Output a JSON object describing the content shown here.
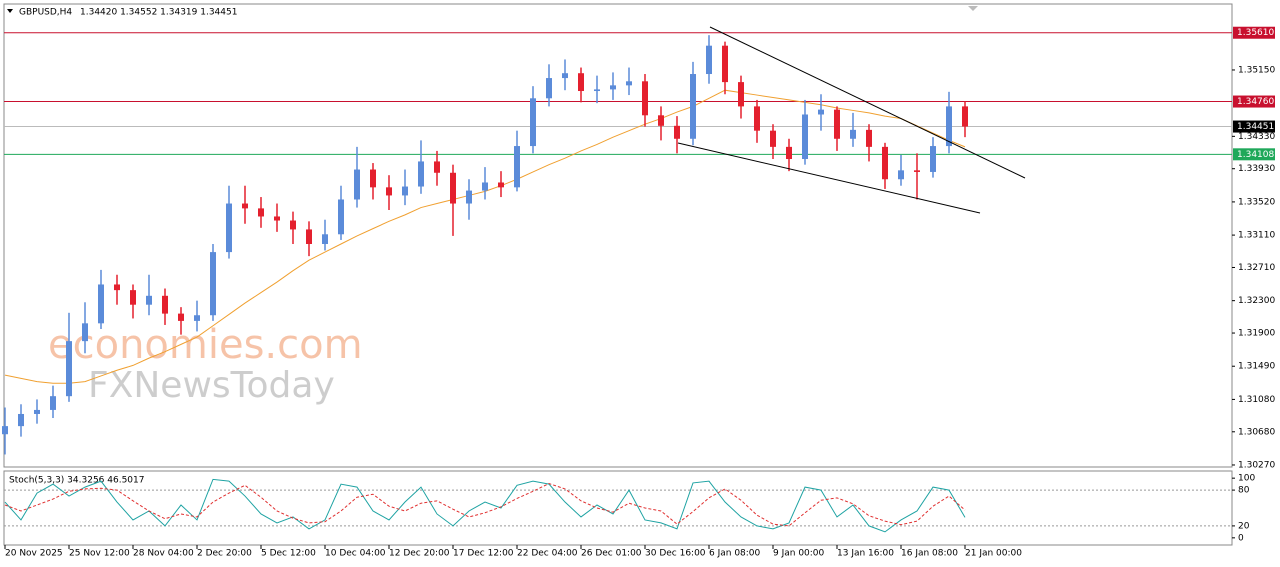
{
  "chart_data": [
    {
      "type": "candlestick",
      "title": "GBPUSD,H4",
      "subtitle": "1.34420 1.34552 1.34319 1.34451",
      "watermark": [
        "economies.com",
        "FXNewsToday"
      ],
      "up_color": "#5b8bd9",
      "down_color": "#e4202e",
      "open": [
        1.3065,
        1.3075,
        1.309,
        1.3095,
        1.3112,
        1.318,
        1.3202,
        1.325,
        1.3243,
        1.3225,
        1.3236,
        1.3214,
        1.3205,
        1.3212,
        1.329,
        1.335,
        1.3344,
        1.3334,
        1.3329,
        1.3318,
        1.33,
        1.3312,
        1.3355,
        1.3392,
        1.337,
        1.336,
        1.3371,
        1.3402,
        1.3388,
        1.335,
        1.3366,
        1.3376,
        1.337,
        1.3421,
        1.348,
        1.3505,
        1.3511,
        1.3489,
        1.3491,
        1.3496,
        1.3501,
        1.3459,
        1.3446,
        1.343,
        1.351,
        1.3545,
        1.35,
        1.347,
        1.344,
        1.342,
        1.3405,
        1.346,
        1.3466,
        1.343,
        1.3441,
        1.342,
        1.338,
        1.3391,
        1.3389,
        1.3421,
        1.347
      ],
      "high": [
        1.3098,
        1.3102,
        1.3108,
        1.3125,
        1.3215,
        1.3228,
        1.3268,
        1.3262,
        1.325,
        1.3262,
        1.3245,
        1.3222,
        1.323,
        1.33,
        1.3372,
        1.3372,
        1.3358,
        1.335,
        1.334,
        1.3328,
        1.333,
        1.3372,
        1.342,
        1.34,
        1.3385,
        1.3392,
        1.3428,
        1.3415,
        1.3398,
        1.338,
        1.3395,
        1.339,
        1.344,
        1.3495,
        1.3522,
        1.3528,
        1.3518,
        1.3508,
        1.3512,
        1.3518,
        1.351,
        1.347,
        1.3458,
        1.3525,
        1.3558,
        1.355,
        1.3508,
        1.3478,
        1.3448,
        1.343,
        1.3478,
        1.3485,
        1.347,
        1.3462,
        1.3448,
        1.3425,
        1.341,
        1.3412,
        1.3432,
        1.3488,
        1.3476
      ],
      "low": [
        1.304,
        1.3062,
        1.3078,
        1.3085,
        1.3105,
        1.3165,
        1.3195,
        1.3225,
        1.3208,
        1.3212,
        1.32,
        1.3188,
        1.3192,
        1.3205,
        1.3282,
        1.3325,
        1.332,
        1.3315,
        1.33,
        1.3285,
        1.3292,
        1.3305,
        1.3345,
        1.3355,
        1.3342,
        1.3348,
        1.3362,
        1.3372,
        1.331,
        1.333,
        1.3355,
        1.3358,
        1.3365,
        1.3412,
        1.347,
        1.349,
        1.3475,
        1.3474,
        1.3478,
        1.3484,
        1.3445,
        1.3428,
        1.3412,
        1.3422,
        1.3498,
        1.3485,
        1.3455,
        1.3425,
        1.3405,
        1.339,
        1.3398,
        1.344,
        1.3415,
        1.342,
        1.3402,
        1.3368,
        1.3372,
        1.3355,
        1.3382,
        1.3412,
        1.3432
      ],
      "close": [
        1.3075,
        1.309,
        1.3095,
        1.3112,
        1.318,
        1.3202,
        1.325,
        1.3243,
        1.3225,
        1.3236,
        1.3214,
        1.3205,
        1.3212,
        1.329,
        1.335,
        1.3344,
        1.3334,
        1.3329,
        1.3318,
        1.33,
        1.3312,
        1.3355,
        1.3392,
        1.337,
        1.336,
        1.3371,
        1.3402,
        1.3388,
        1.335,
        1.3366,
        1.3376,
        1.337,
        1.3421,
        1.348,
        1.3505,
        1.3511,
        1.3489,
        1.3491,
        1.3496,
        1.3501,
        1.3459,
        1.3446,
        1.343,
        1.351,
        1.3545,
        1.35,
        1.347,
        1.344,
        1.342,
        1.3405,
        1.346,
        1.3466,
        1.343,
        1.3441,
        1.342,
        1.338,
        1.3391,
        1.3389,
        1.3421,
        1.347,
        1.34451
      ],
      "series": [
        {
          "color": "#f0a030",
          "values": [
            1.3138,
            1.3134,
            1.313,
            1.3128,
            1.3128,
            1.313,
            1.3137,
            1.3144,
            1.315,
            1.3159,
            1.3167,
            1.3176,
            1.3185,
            1.3199,
            1.3213,
            1.3227,
            1.324,
            1.3253,
            1.3267,
            1.328,
            1.329,
            1.33,
            1.331,
            1.3319,
            1.3328,
            1.3336,
            1.3345,
            1.335,
            1.3355,
            1.336,
            1.3365,
            1.3372,
            1.338,
            1.3389,
            1.3398,
            1.3406,
            1.3415,
            1.3423,
            1.3432,
            1.344,
            1.3448,
            1.3455,
            1.3463,
            1.347,
            1.348,
            1.349,
            1.3487,
            1.3484,
            1.3481,
            1.3478,
            1.3475,
            1.3472,
            1.3468,
            1.3465,
            1.3462,
            1.3458,
            1.3455,
            1.3446,
            1.3437,
            1.3428,
            1.342
          ]
        }
      ],
      "levels": [
        {
          "value": 1.3561,
          "label": "1.35610",
          "color": "#c8102e"
        },
        {
          "value": 1.3476,
          "label": "1.34760",
          "color": "#c8102e"
        },
        {
          "value": 1.34451,
          "label": "1.34451",
          "color": "#000000"
        },
        {
          "value": 1.34108,
          "label": "1.34108",
          "color": "#1fa85a"
        }
      ],
      "xlim": [
        -0.0625,
        76.6875
      ],
      "ylim": [
        1.30245,
        1.35965
      ],
      "yticks": [
        {
          "value": 1.3515,
          "label": "1.35150"
        },
        {
          "value": 1.3433,
          "label": "1.34330"
        },
        {
          "value": 1.3393,
          "label": "1.33930"
        },
        {
          "value": 1.3352,
          "label": "1.33520"
        },
        {
          "value": 1.3311,
          "label": "1.33110"
        },
        {
          "value": 1.3271,
          "label": "1.32710"
        },
        {
          "value": 1.323,
          "label": "1.32300"
        },
        {
          "value": 1.319,
          "label": "1.31900"
        },
        {
          "value": 1.3149,
          "label": "1.31490"
        },
        {
          "value": 1.3108,
          "label": "1.31080"
        },
        {
          "value": 1.3068,
          "label": "1.30680"
        },
        {
          "value": 1.3027,
          "label": "1.30270"
        }
      ],
      "xticks": [
        {
          "value": 0,
          "label": "20 Nov 2025"
        },
        {
          "value": 4,
          "label": "25 Nov 12:00"
        },
        {
          "value": 8,
          "label": "28 Nov 04:00"
        },
        {
          "value": 12,
          "label": "2 Dec 20:00"
        },
        {
          "value": 16,
          "label": "5 Dec 12:00"
        },
        {
          "value": 20,
          "label": "10 Dec 04:00"
        },
        {
          "value": 24,
          "label": "12 Dec 20:00"
        },
        {
          "value": 28,
          "label": "17 Dec 12:00"
        },
        {
          "value": 32,
          "label": "22 Dec 04:00"
        },
        {
          "value": 36,
          "label": "26 Dec 01:00"
        },
        {
          "value": 40,
          "label": "30 Dec 16:00"
        },
        {
          "value": 44,
          "label": "6 Jan 08:00"
        },
        {
          "value": 48,
          "label": "9 Jan 00:00"
        },
        {
          "value": 52,
          "label": "13 Jan 16:00"
        },
        {
          "value": 56,
          "label": "16 Jan 08:00"
        },
        {
          "value": 60,
          "label": "21 Jan 00:00"
        }
      ]
    },
    {
      "type": "line",
      "title": "Stoch(5,3,3) 34.3256 46.5017",
      "ylim": [
        -12,
        112
      ],
      "yticks": [
        0,
        20,
        80,
        100
      ],
      "levels": [
        20,
        80
      ],
      "series": [
        {
          "color": "#1fa3a3",
          "values": [
            60,
            30,
            75,
            90,
            70,
            85,
            95,
            60,
            30,
            45,
            20,
            55,
            30,
            98,
            95,
            70,
            40,
            25,
            35,
            15,
            30,
            90,
            85,
            45,
            30,
            60,
            85,
            40,
            20,
            45,
            60,
            50,
            88,
            95,
            90,
            60,
            35,
            55,
            40,
            80,
            30,
            25,
            15,
            92,
            95,
            60,
            35,
            20,
            15,
            25,
            85,
            80,
            35,
            55,
            20,
            10,
            30,
            45,
            85,
            80,
            34.3256
          ]
        },
        {
          "color": "#e03030",
          "dash": true,
          "values": [
            55,
            45,
            55,
            65,
            78,
            82,
            83,
            80,
            62,
            45,
            32,
            40,
            35,
            60,
            75,
            88,
            68,
            45,
            33,
            25,
            27,
            45,
            68,
            73,
            53,
            45,
            58,
            62,
            48,
            35,
            42,
            52,
            66,
            78,
            91,
            82,
            62,
            50,
            43,
            58,
            50,
            45,
            23,
            44,
            67,
            82,
            63,
            38,
            23,
            20,
            42,
            63,
            67,
            57,
            37,
            28,
            22,
            28,
            53,
            70,
            46.5017
          ]
        }
      ]
    }
  ]
}
